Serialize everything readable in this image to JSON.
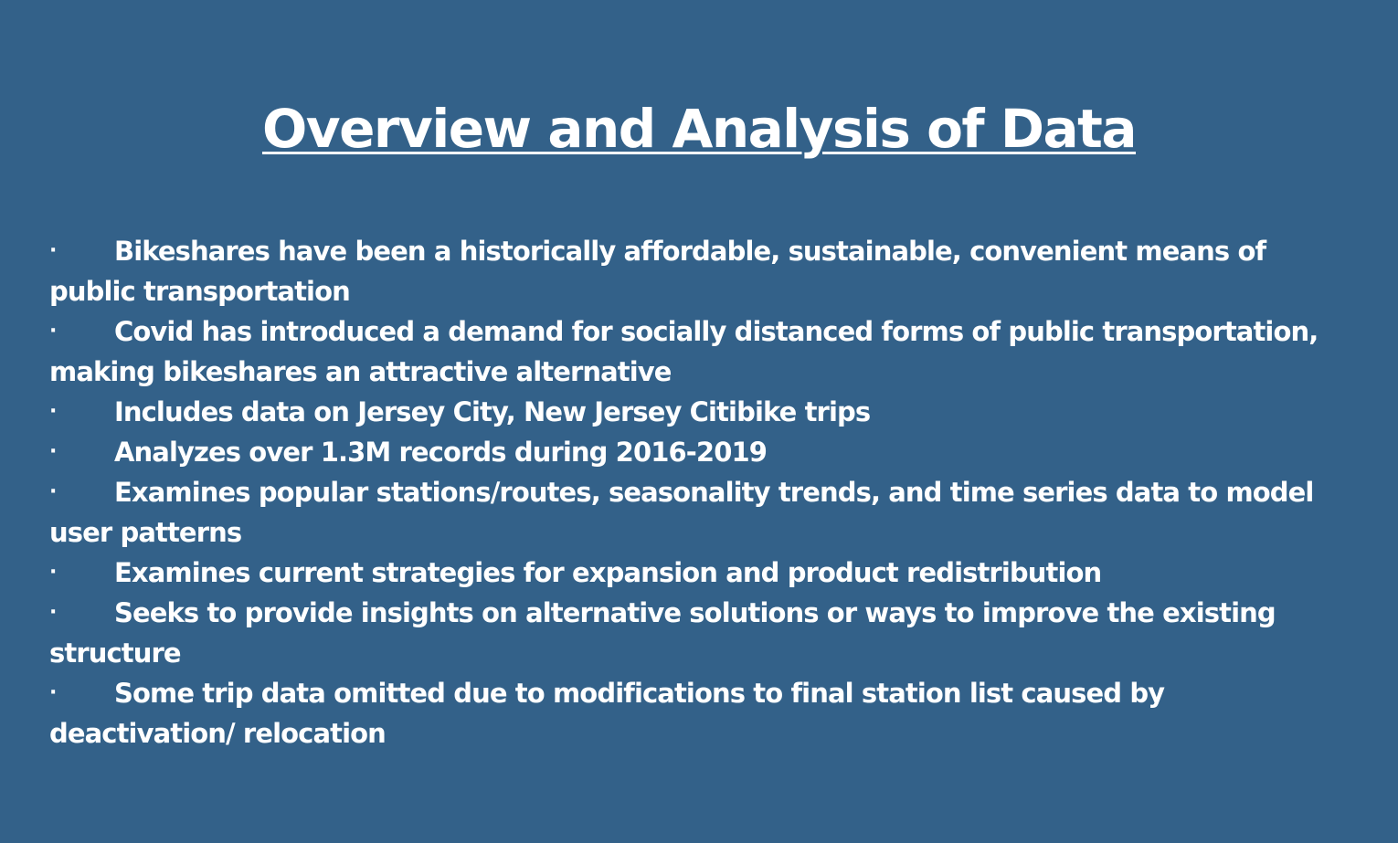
{
  "slide": {
    "title": "Overview and Analysis of Data",
    "bullet_marker": "·",
    "bullets": [
      "Bikeshares have been a historically affordable, sustainable, convenient means of public transportation",
      "Covid has introduced a demand for socially distanced forms of public transportation, making bikeshares an attractive alternative",
      "Includes data on Jersey City, New Jersey Citibike trips",
      "Analyzes over 1.3M records during 2016-2019",
      "Examines popular stations/routes, seasonality trends, and time series data to model user patterns",
      "Examines current strategies for expansion and product redistribution",
      "Seeks to provide insights on alternative solutions or ways to improve the existing structure",
      "Some trip data omitted due to modifications to final station list caused by deactivation/ relocation"
    ]
  },
  "colors": {
    "background": "#336189",
    "text": "#ffffff"
  }
}
